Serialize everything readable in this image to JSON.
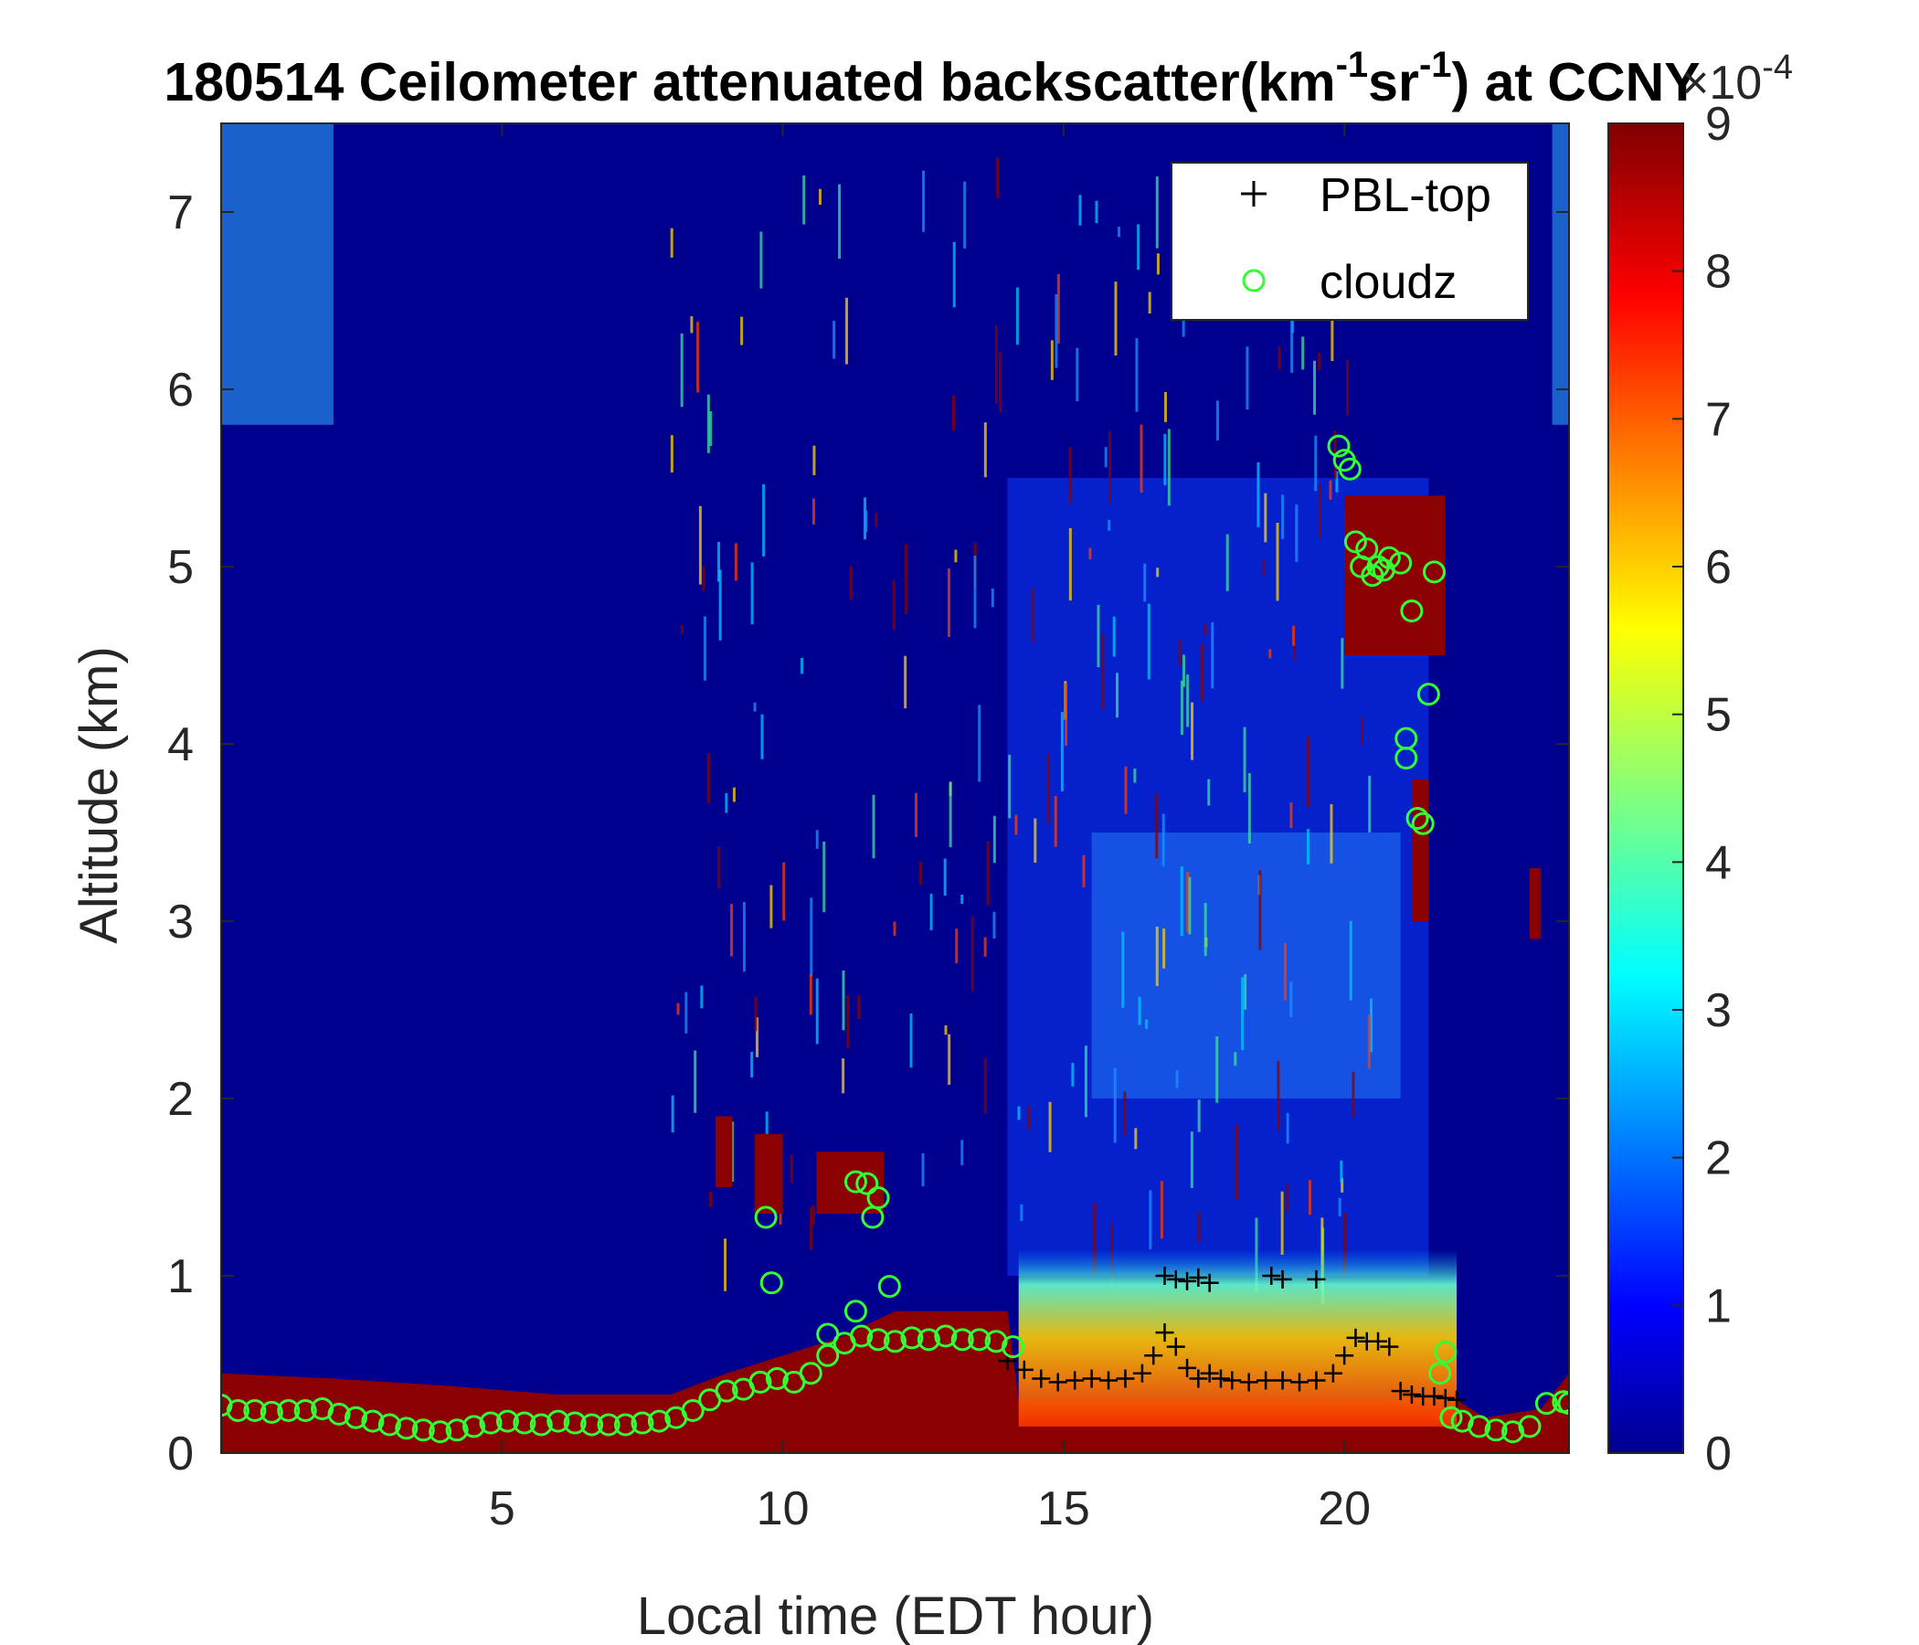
{
  "chart_data": {
    "type": "heatmap",
    "title": "180514 Ceilometer attenuated backscatter(km",
    "title_sup1": "-1",
    "title_mid": "sr",
    "title_sup2": "-1",
    "title_end": ") at CCNY",
    "xlabel": "Local time (EDT hour)",
    "ylabel": "Altitude (km)",
    "xlim": [
      0,
      24
    ],
    "ylim": [
      0,
      7.5
    ],
    "xticks": [
      5,
      10,
      15,
      20
    ],
    "yticks": [
      0,
      1,
      2,
      3,
      4,
      5,
      6,
      7
    ],
    "colorbar": {
      "range": [
        0,
        9
      ],
      "ticks": [
        0,
        1,
        2,
        3,
        4,
        5,
        6,
        7,
        8,
        9
      ],
      "scale_label_base": "×10",
      "scale_label_exp": "-4",
      "colormap": "jet"
    },
    "legend": {
      "position": "top-right"
    },
    "series": [
      {
        "name": "PBL-top",
        "marker": "+",
        "color": "#000000",
        "x": [
          14.0,
          14.3,
          14.6,
          14.9,
          15.2,
          15.5,
          15.8,
          16.1,
          16.4,
          16.6,
          16.8,
          17.0,
          17.2,
          17.4,
          17.6,
          17.8,
          18.0,
          18.3,
          18.6,
          18.9,
          19.2,
          19.5,
          19.8,
          20.0,
          20.2,
          20.4,
          20.6,
          20.8,
          21.0,
          21.2,
          21.4,
          21.6,
          21.8,
          22.0,
          16.8,
          17.0,
          17.2,
          17.4,
          17.6,
          18.7,
          18.9,
          19.5
        ],
        "y": [
          0.52,
          0.47,
          0.42,
          0.4,
          0.41,
          0.42,
          0.41,
          0.42,
          0.45,
          0.55,
          0.68,
          0.6,
          0.48,
          0.42,
          0.45,
          0.42,
          0.41,
          0.4,
          0.41,
          0.41,
          0.4,
          0.41,
          0.45,
          0.55,
          0.65,
          0.63,
          0.63,
          0.6,
          0.35,
          0.33,
          0.32,
          0.32,
          0.31,
          0.3,
          1.0,
          0.98,
          0.97,
          0.99,
          0.96,
          1.0,
          0.98,
          0.98
        ]
      },
      {
        "name": "cloudz",
        "marker": "o",
        "color": "#33ff33",
        "x": [
          0.0,
          0.3,
          0.6,
          0.9,
          1.2,
          1.5,
          1.8,
          2.1,
          2.4,
          2.7,
          3.0,
          3.3,
          3.6,
          3.9,
          4.2,
          4.5,
          4.8,
          5.1,
          5.4,
          5.7,
          6.0,
          6.3,
          6.6,
          6.9,
          7.2,
          7.5,
          7.8,
          8.1,
          8.4,
          8.7,
          9.0,
          9.3,
          9.6,
          9.9,
          10.2,
          10.5,
          10.8,
          11.1,
          11.4,
          11.7,
          12.0,
          12.3,
          12.6,
          12.9,
          13.2,
          13.5,
          13.8,
          14.1,
          9.7,
          9.8,
          11.3,
          11.5,
          11.6,
          11.7,
          11.9,
          10.8,
          11.3,
          19.9,
          20.0,
          20.1,
          20.2,
          20.3,
          20.4,
          20.5,
          20.6,
          20.7,
          20.8,
          21.0,
          21.2,
          21.6,
          21.1,
          21.5,
          21.1,
          21.3,
          21.4,
          21.7,
          21.8,
          21.9,
          22.1,
          22.4,
          22.7,
          23.0,
          23.3,
          23.6,
          23.9,
          24.0
        ],
        "y": [
          0.27,
          0.24,
          0.24,
          0.23,
          0.24,
          0.24,
          0.25,
          0.22,
          0.2,
          0.18,
          0.16,
          0.14,
          0.13,
          0.12,
          0.13,
          0.15,
          0.17,
          0.18,
          0.17,
          0.16,
          0.18,
          0.17,
          0.16,
          0.16,
          0.16,
          0.17,
          0.18,
          0.2,
          0.24,
          0.3,
          0.35,
          0.36,
          0.4,
          0.42,
          0.4,
          0.45,
          0.55,
          0.62,
          0.66,
          0.64,
          0.63,
          0.65,
          0.64,
          0.66,
          0.64,
          0.64,
          0.63,
          0.6,
          1.33,
          0.96,
          1.53,
          1.52,
          1.33,
          1.44,
          0.94,
          0.67,
          0.8,
          5.68,
          5.6,
          5.55,
          5.14,
          5.0,
          5.1,
          4.95,
          5.0,
          4.98,
          5.05,
          5.02,
          4.75,
          4.97,
          3.92,
          4.28,
          4.03,
          3.58,
          3.55,
          0.45,
          0.57,
          0.2,
          0.18,
          0.15,
          0.13,
          0.12,
          0.15,
          0.28,
          0.29,
          0.28
        ]
      }
    ]
  }
}
